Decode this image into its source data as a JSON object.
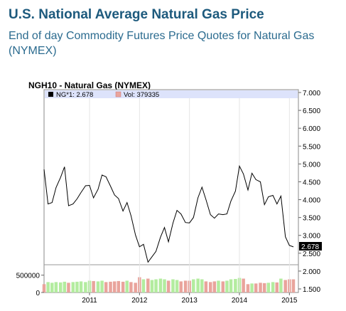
{
  "page": {
    "title": "U.S. National Average Natural Gas Price",
    "subtitle": "End of day Commodity Futures Price Quotes for Natural Gas (NYMEX)"
  },
  "chart_data": {
    "type": "line",
    "title": "NGH10 - Natural Gas (NYMEX)",
    "legend": {
      "placement": "top-left",
      "price_label": "NG*1: 2.678",
      "volume_label": "Vol: 379335",
      "price_color": "#000000",
      "volume_color": "#e9a49c"
    },
    "last_value_label": "2.678",
    "x": {
      "range": [
        2010.09,
        2015.18
      ],
      "ticks": [
        2011,
        2012,
        2013,
        2014,
        2015
      ],
      "tick_labels": [
        "2011",
        "2012",
        "2013",
        "2014",
        "2015"
      ]
    },
    "price_axis": {
      "range": [
        1.5,
        7.0
      ],
      "ticks": [
        1.5,
        2.0,
        2.5,
        3.0,
        3.5,
        4.0,
        4.5,
        5.0,
        5.5,
        6.0,
        6.5,
        7.0
      ],
      "tick_labels": [
        "1.500",
        "2.000",
        "2.500",
        "3.000",
        "3.500",
        "4.000",
        "4.500",
        "5.000",
        "5.500",
        "6.000",
        "6.500",
        "7.000"
      ]
    },
    "volume_axis": {
      "range": [
        0,
        800000
      ],
      "ticks": [
        0,
        500000
      ],
      "tick_labels": [
        "0",
        "500000"
      ]
    },
    "series": [
      {
        "name": "NG*1",
        "color": "#000000",
        "points": [
          [
            2010.09,
            4.85
          ],
          [
            2010.17,
            3.88
          ],
          [
            2010.25,
            3.92
          ],
          [
            2010.33,
            4.34
          ],
          [
            2010.42,
            4.62
          ],
          [
            2010.5,
            4.92
          ],
          [
            2010.58,
            3.83
          ],
          [
            2010.67,
            3.88
          ],
          [
            2010.75,
            4.02
          ],
          [
            2010.83,
            4.2
          ],
          [
            2010.92,
            4.39
          ],
          [
            2011.0,
            4.4
          ],
          [
            2011.08,
            4.05
          ],
          [
            2011.17,
            4.29
          ],
          [
            2011.25,
            4.69
          ],
          [
            2011.33,
            4.64
          ],
          [
            2011.42,
            4.38
          ],
          [
            2011.5,
            4.13
          ],
          [
            2011.58,
            4.03
          ],
          [
            2011.67,
            3.68
          ],
          [
            2011.75,
            3.92
          ],
          [
            2011.83,
            3.55
          ],
          [
            2011.92,
            3.01
          ],
          [
            2012.0,
            2.68
          ],
          [
            2012.08,
            2.75
          ],
          [
            2012.17,
            2.25
          ],
          [
            2012.25,
            2.4
          ],
          [
            2012.33,
            2.55
          ],
          [
            2012.42,
            2.95
          ],
          [
            2012.5,
            3.22
          ],
          [
            2012.58,
            2.82
          ],
          [
            2012.67,
            3.35
          ],
          [
            2012.75,
            3.7
          ],
          [
            2012.83,
            3.6
          ],
          [
            2012.92,
            3.36
          ],
          [
            2013.0,
            3.35
          ],
          [
            2013.08,
            3.5
          ],
          [
            2013.17,
            4.05
          ],
          [
            2013.25,
            4.35
          ],
          [
            2013.33,
            4.0
          ],
          [
            2013.42,
            3.58
          ],
          [
            2013.5,
            3.48
          ],
          [
            2013.58,
            3.6
          ],
          [
            2013.67,
            3.58
          ],
          [
            2013.75,
            3.6
          ],
          [
            2013.83,
            3.96
          ],
          [
            2013.92,
            4.24
          ],
          [
            2014.0,
            4.94
          ],
          [
            2014.08,
            4.72
          ],
          [
            2014.17,
            4.27
          ],
          [
            2014.25,
            4.74
          ],
          [
            2014.33,
            4.56
          ],
          [
            2014.42,
            4.5
          ],
          [
            2014.5,
            3.86
          ],
          [
            2014.58,
            4.08
          ],
          [
            2014.67,
            4.12
          ],
          [
            2014.75,
            3.88
          ],
          [
            2014.83,
            4.1
          ],
          [
            2014.92,
            2.96
          ],
          [
            2015.0,
            2.72
          ],
          [
            2015.08,
            2.678
          ]
        ]
      },
      {
        "name": "Vol",
        "type": "bar",
        "colors": {
          "up": "#b3ec9f",
          "down": "#e9a49c"
        },
        "points": [
          [
            2010.09,
            240000,
            "down"
          ],
          [
            2010.17,
            300000,
            "up"
          ],
          [
            2010.25,
            280000,
            "up"
          ],
          [
            2010.33,
            300000,
            "up"
          ],
          [
            2010.42,
            290000,
            "up"
          ],
          [
            2010.5,
            310000,
            "up"
          ],
          [
            2010.58,
            280000,
            "down"
          ],
          [
            2010.67,
            300000,
            "up"
          ],
          [
            2010.75,
            310000,
            "up"
          ],
          [
            2010.83,
            320000,
            "up"
          ],
          [
            2010.92,
            300000,
            "up"
          ],
          [
            2011.0,
            340000,
            "up"
          ],
          [
            2011.08,
            330000,
            "down"
          ],
          [
            2011.17,
            320000,
            "up"
          ],
          [
            2011.25,
            340000,
            "up"
          ],
          [
            2011.33,
            300000,
            "down"
          ],
          [
            2011.42,
            310000,
            "down"
          ],
          [
            2011.5,
            320000,
            "down"
          ],
          [
            2011.58,
            330000,
            "down"
          ],
          [
            2011.67,
            310000,
            "down"
          ],
          [
            2011.75,
            340000,
            "up"
          ],
          [
            2011.83,
            300000,
            "down"
          ],
          [
            2011.92,
            280000,
            "down"
          ],
          [
            2012.0,
            440000,
            "down"
          ],
          [
            2012.08,
            380000,
            "up"
          ],
          [
            2012.17,
            400000,
            "down"
          ],
          [
            2012.25,
            360000,
            "up"
          ],
          [
            2012.33,
            380000,
            "up"
          ],
          [
            2012.42,
            400000,
            "up"
          ],
          [
            2012.5,
            380000,
            "up"
          ],
          [
            2012.58,
            340000,
            "down"
          ],
          [
            2012.67,
            380000,
            "up"
          ],
          [
            2012.75,
            360000,
            "up"
          ],
          [
            2012.83,
            320000,
            "down"
          ],
          [
            2012.92,
            340000,
            "down"
          ],
          [
            2013.0,
            340000,
            "down"
          ],
          [
            2013.08,
            380000,
            "up"
          ],
          [
            2013.17,
            400000,
            "up"
          ],
          [
            2013.25,
            380000,
            "up"
          ],
          [
            2013.33,
            320000,
            "down"
          ],
          [
            2013.42,
            300000,
            "down"
          ],
          [
            2013.5,
            320000,
            "down"
          ],
          [
            2013.58,
            340000,
            "up"
          ],
          [
            2013.67,
            320000,
            "down"
          ],
          [
            2013.75,
            340000,
            "up"
          ],
          [
            2013.83,
            380000,
            "up"
          ],
          [
            2013.92,
            390000,
            "up"
          ],
          [
            2014.0,
            420000,
            "up"
          ],
          [
            2014.08,
            400000,
            "down"
          ],
          [
            2014.17,
            240000,
            "down"
          ],
          [
            2014.25,
            260000,
            "up"
          ],
          [
            2014.33,
            260000,
            "down"
          ],
          [
            2014.42,
            280000,
            "down"
          ],
          [
            2014.5,
            270000,
            "down"
          ],
          [
            2014.58,
            280000,
            "up"
          ],
          [
            2014.67,
            300000,
            "up"
          ],
          [
            2014.75,
            290000,
            "down"
          ],
          [
            2014.83,
            400000,
            "up"
          ],
          [
            2014.92,
            360000,
            "down"
          ],
          [
            2015.0,
            380000,
            "down"
          ],
          [
            2015.08,
            379335,
            "down"
          ]
        ]
      }
    ]
  }
}
